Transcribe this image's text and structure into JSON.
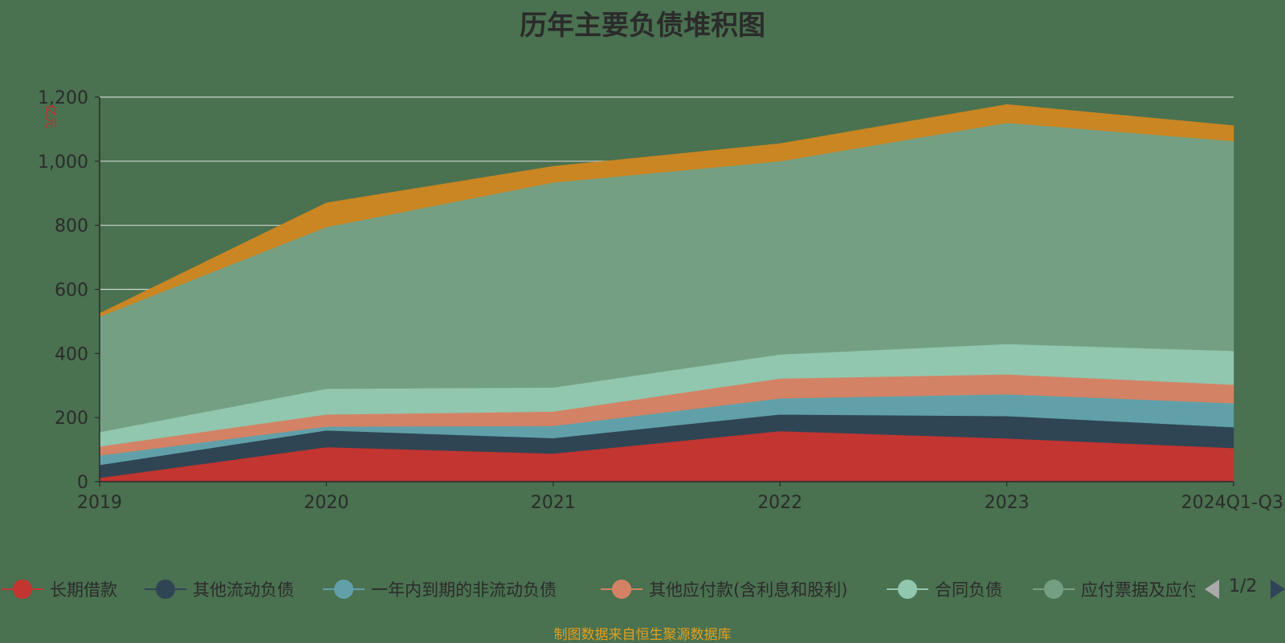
{
  "chart_data": {
    "type": "area",
    "title": "历年主要负债堆积图",
    "ylabel": "亿元",
    "xlabel": "",
    "stacked": true,
    "categories": [
      "2019",
      "2020",
      "2021",
      "2022",
      "2023",
      "2024Q1-Q3"
    ],
    "ylim": [
      0,
      1200
    ],
    "yticks": [
      "0",
      "200",
      "400",
      "600",
      "800",
      "1,000",
      "1,200"
    ],
    "ytick_values": [
      0,
      200,
      400,
      600,
      800,
      1000,
      1200
    ],
    "grid": true,
    "legend_position": "bottom",
    "series": [
      {
        "name": "长期借款",
        "color": "#c23531",
        "values": [
          12,
          108,
          88,
          158,
          135,
          105
        ]
      },
      {
        "name": "其他流动负债",
        "color": "#2f4554",
        "values": [
          40,
          52,
          48,
          52,
          70,
          65
        ]
      },
      {
        "name": "一年内到期的非流动负债",
        "color": "#61a0a8",
        "values": [
          30,
          12,
          38,
          50,
          68,
          75
        ]
      },
      {
        "name": "其他应付款(含利息和股利)",
        "color": "#d48265",
        "values": [
          28,
          38,
          45,
          62,
          62,
          58
        ]
      },
      {
        "name": "合同负债",
        "color": "#91c7ae",
        "values": [
          45,
          80,
          75,
          75,
          95,
          105
        ]
      },
      {
        "name": "应付票据及应付账款",
        "color": "#749f83",
        "values": [
          360,
          505,
          640,
          603,
          690,
          655
        ]
      },
      {
        "name": "",
        "color": "#ca8622",
        "values": [
          10,
          75,
          50,
          55,
          57,
          48
        ]
      }
    ]
  },
  "legend": {
    "items": [
      {
        "label": "长期借款",
        "color": "#c23531"
      },
      {
        "label": "其他流动负债",
        "color": "#2f4554"
      },
      {
        "label": "一年内到期的非流动负债",
        "color": "#61a0a8"
      },
      {
        "label": "其他应付款(含利息和股利)",
        "color": "#d48265"
      },
      {
        "label": "合同负债",
        "color": "#91c7ae"
      },
      {
        "label": "应付票据及应付账款",
        "color": "#749f83"
      }
    ],
    "page_text": "1/2"
  },
  "footer": {
    "text": "制图数据来自恒生聚源数据库"
  }
}
